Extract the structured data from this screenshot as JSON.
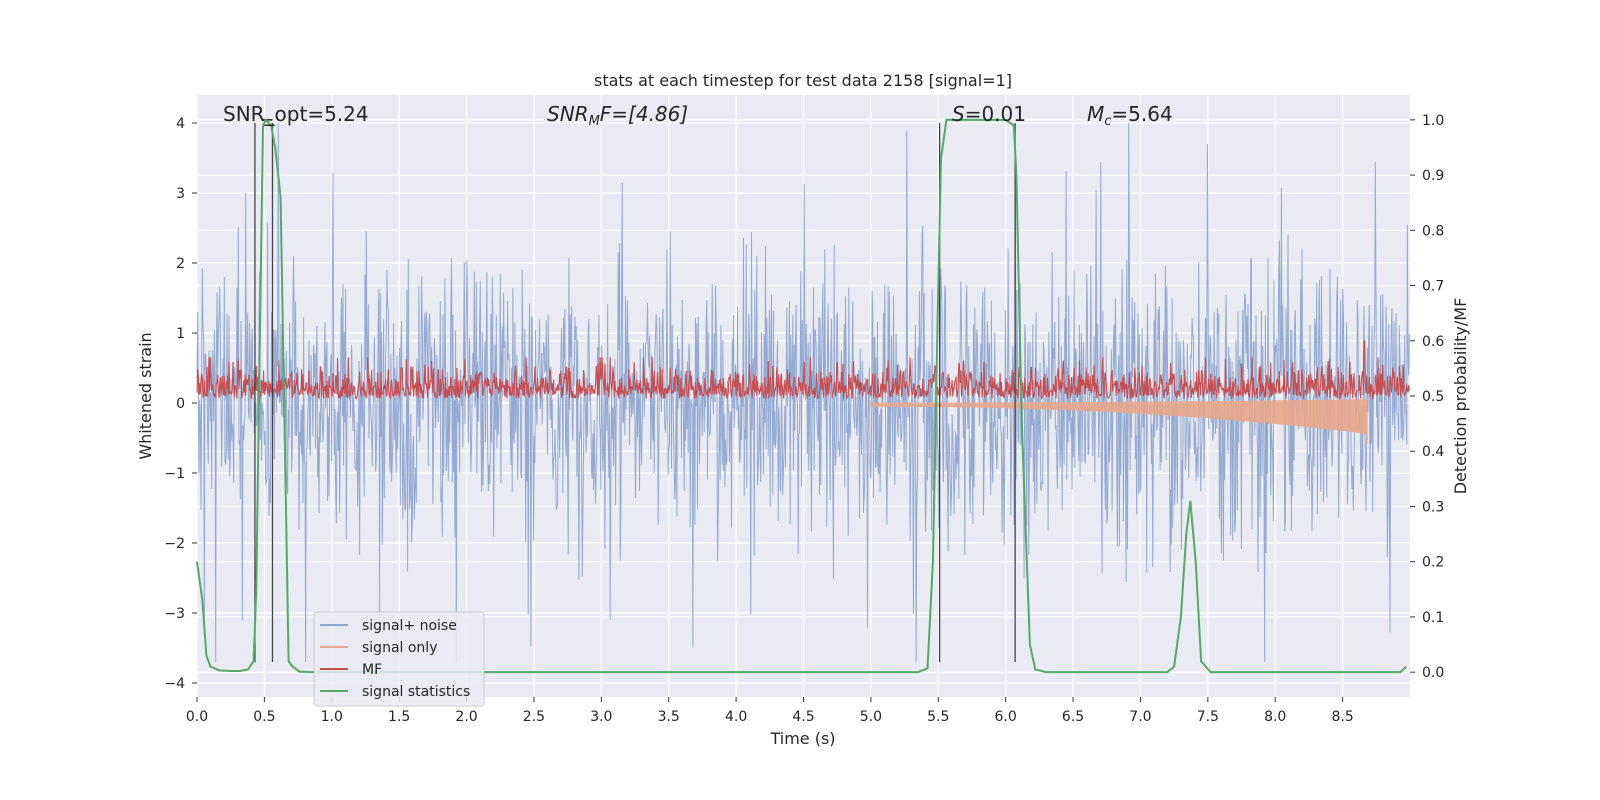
{
  "chart_data": {
    "type": "line",
    "title": "stats at each timestep for test data 2158 [signal=1]",
    "xlabel": "Time (s)",
    "ylabel_left": "Whitened strain",
    "ylabel_right": "Detection probability/MF",
    "xlim": [
      0,
      9.0
    ],
    "ylim_left": [
      -4.2,
      4.4
    ],
    "ylim_right": [
      -0.045,
      1.045
    ],
    "x_ticks": [
      "0.0",
      "0.5",
      "1.0",
      "1.5",
      "2.0",
      "2.5",
      "3.0",
      "3.5",
      "4.0",
      "4.5",
      "5.0",
      "5.5",
      "6.0",
      "6.5",
      "7.0",
      "7.5",
      "8.0",
      "8.5"
    ],
    "x_tick_values": [
      0,
      0.5,
      1.0,
      1.5,
      2.0,
      2.5,
      3.0,
      3.5,
      4.0,
      4.5,
      5.0,
      5.5,
      6.0,
      6.5,
      7.0,
      7.5,
      8.0,
      8.5
    ],
    "y_ticks_left": [
      "4",
      "3",
      "2",
      "1",
      "0",
      "−1",
      "−2",
      "−3",
      "−4"
    ],
    "y_tick_values_left": [
      4,
      3,
      2,
      1,
      0,
      -1,
      -2,
      -3,
      -4
    ],
    "y_ticks_right": [
      "1.0",
      "0.9",
      "0.8",
      "0.7",
      "0.6",
      "0.5",
      "0.4",
      "0.3",
      "0.2",
      "0.1",
      "0.0"
    ],
    "y_tick_values_right": [
      1.0,
      0.9,
      0.8,
      0.7,
      0.6,
      0.5,
      0.4,
      0.3,
      0.2,
      0.1,
      0.0
    ],
    "grid": true,
    "legend_position": "lower-left",
    "annotations": {
      "snr_opt": "SNR_opt=5.24",
      "snr_mf_prefix": "SNR",
      "snr_mf_sub": "M",
      "snr_mf_suffix": "F=[4.86]",
      "s_label": "S",
      "s_value": "=0.01",
      "mc_label": "M",
      "mc_sub": "c",
      "mc_value": "=5.64"
    },
    "vertical_markers_s": [
      0.43,
      0.56,
      5.51,
      6.07
    ],
    "marker_range": [
      -3.7,
      4.0
    ],
    "series": [
      {
        "name": "signal+ noise",
        "color": "#8fa6cf",
        "axis": "left",
        "kind": "noise",
        "typical_amplitude": 1.0,
        "peak_range": [
          -3.7,
          4.0
        ]
      },
      {
        "name": "signal only",
        "color": "#e8a78b",
        "axis": "left",
        "kind": "chirp",
        "start_s": 5.0,
        "merger_s": 8.68,
        "peak_amplitude": 0.55
      },
      {
        "name": "MF",
        "color": "#c44e52",
        "axis": "right",
        "kind": "noise",
        "baseline": 0.5,
        "typical_amplitude": 0.04,
        "peak_value": 0.6,
        "peak_at_s": 8.66
      },
      {
        "name": "signal statistics",
        "color": "#55a868",
        "axis": "right",
        "kind": "line",
        "x": [
          0.0,
          0.04,
          0.07,
          0.1,
          0.17,
          0.25,
          0.32,
          0.38,
          0.42,
          0.44,
          0.46,
          0.49,
          0.51,
          0.55,
          0.58,
          0.62,
          0.68,
          0.71,
          0.76,
          0.85,
          5.35,
          5.42,
          5.46,
          5.5,
          5.52,
          5.56,
          5.62,
          5.8,
          6.0,
          6.06,
          6.08,
          6.12,
          6.18,
          6.22,
          6.3,
          7.2,
          7.25,
          7.3,
          7.34,
          7.37,
          7.41,
          7.45,
          7.52,
          7.7,
          8.93,
          8.97
        ],
        "y": [
          0.2,
          0.13,
          0.03,
          0.01,
          0.003,
          0.002,
          0.002,
          0.005,
          0.02,
          0.15,
          0.5,
          0.99,
          1.0,
          0.99,
          0.95,
          0.86,
          0.02,
          0.01,
          0.001,
          0.0,
          0.0,
          0.007,
          0.2,
          0.7,
          0.93,
          1.0,
          1.0,
          1.0,
          1.0,
          0.99,
          0.9,
          0.45,
          0.05,
          0.005,
          0.0,
          0.0,
          0.01,
          0.1,
          0.25,
          0.31,
          0.2,
          0.02,
          0.0,
          0.0,
          0.0,
          0.01
        ]
      }
    ]
  }
}
